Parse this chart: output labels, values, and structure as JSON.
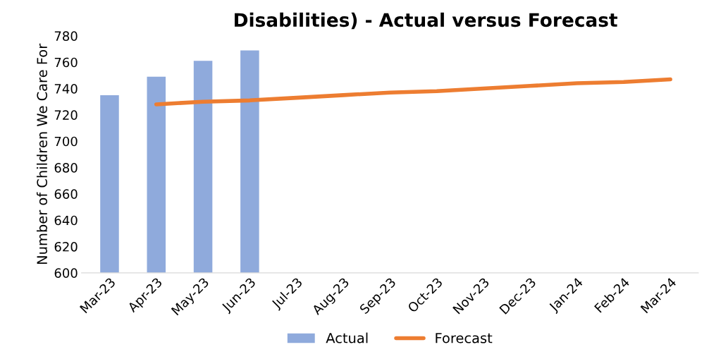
{
  "chart_data": {
    "type": "bar",
    "title": "Disabilities) - Actual versus Forecast",
    "ylabel": "Number of Children We Care For",
    "categories": [
      "Mar-23",
      "Apr-23",
      "May-23",
      "Jun-23",
      "Jul-23",
      "Aug-23",
      "Sep-23",
      "Oct-23",
      "Nov-23",
      "Dec-23",
      "Jan-24",
      "Feb-24",
      "Mar-24"
    ],
    "series": [
      {
        "name": "Actual",
        "color": "#8faadc",
        "values": [
          735,
          749,
          761,
          769,
          null,
          null,
          null,
          null,
          null,
          null,
          null,
          null,
          null
        ]
      },
      {
        "name": "Forecast",
        "type": "line",
        "color": "#ed7d31",
        "values": [
          null,
          728,
          730,
          731,
          733,
          735,
          737,
          738,
          740,
          742,
          744,
          745,
          747
        ]
      }
    ],
    "ylim": [
      600,
      780
    ],
    "yticks": [
      600,
      620,
      640,
      660,
      680,
      700,
      720,
      740,
      760,
      780
    ],
    "grid": false,
    "legend": "bottom"
  }
}
